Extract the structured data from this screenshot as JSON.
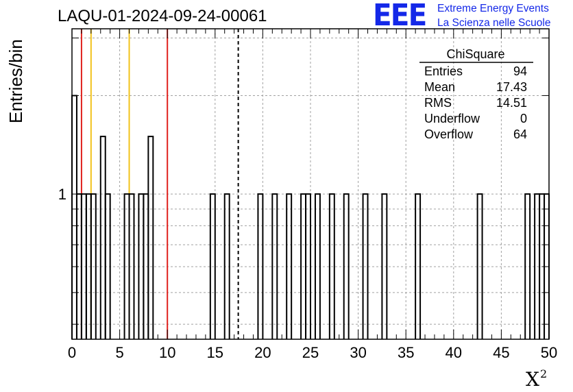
{
  "title": "LAQU-01-2024-09-24-00061",
  "logo": {
    "mark": "EEE",
    "line1": "Extreme Energy Events",
    "line2": "La Scienza nelle Scuole"
  },
  "colors": {
    "histogram": "#000000",
    "red_line": "#e0201c",
    "yellow_line": "#f2c21b",
    "grid": "#a0a0a0",
    "logo": "#1428e8"
  },
  "stats_box": {
    "name": "ChiSquare",
    "rows": [
      {
        "label": "Entries",
        "value": "94"
      },
      {
        "label": "Mean",
        "value": "17.43"
      },
      {
        "label": "RMS",
        "value": "14.51"
      },
      {
        "label": "Underflow",
        "value": "0"
      },
      {
        "label": "Overflow",
        "value": "64"
      }
    ]
  },
  "chart_data": {
    "type": "bar",
    "histogram_style": "step",
    "title": "LAQU-01-2024-09-24-00061",
    "xlabel": "X",
    "xlabel_superscript": "2",
    "ylabel": "Entries/bin",
    "xlim": [
      0,
      50
    ],
    "ylim": [
      0.36,
      3.2
    ],
    "y_scale": "log",
    "grid": true,
    "bin_width": 0.5,
    "x_ticks": [
      0,
      5,
      10,
      15,
      20,
      25,
      30,
      35,
      40,
      45,
      50
    ],
    "y_tick_labels": [
      {
        "value": 1,
        "label": "1"
      }
    ],
    "bins": [
      {
        "x0": 0.0,
        "x1": 0.5,
        "count": 2
      },
      {
        "x0": 0.5,
        "x1": 1.0,
        "count": 1
      },
      {
        "x0": 1.0,
        "x1": 1.5,
        "count": 1
      },
      {
        "x0": 1.5,
        "x1": 2.0,
        "count": 1
      },
      {
        "x0": 2.0,
        "x1": 2.5,
        "count": 1
      },
      {
        "x0": 3.0,
        "x1": 3.5,
        "count": 1.5
      },
      {
        "x0": 3.5,
        "x1": 4.0,
        "count": 1
      },
      {
        "x0": 5.5,
        "x1": 6.0,
        "count": 1
      },
      {
        "x0": 6.0,
        "x1": 6.5,
        "count": 1
      },
      {
        "x0": 7.0,
        "x1": 7.5,
        "count": 1
      },
      {
        "x0": 7.5,
        "x1": 8.0,
        "count": 1
      },
      {
        "x0": 8.0,
        "x1": 8.5,
        "count": 1.5
      },
      {
        "x0": 14.5,
        "x1": 15.0,
        "count": 1
      },
      {
        "x0": 16.0,
        "x1": 16.5,
        "count": 1
      },
      {
        "x0": 19.5,
        "x1": 20.0,
        "count": 1
      },
      {
        "x0": 21.0,
        "x1": 21.5,
        "count": 1
      },
      {
        "x0": 22.5,
        "x1": 23.0,
        "count": 1
      },
      {
        "x0": 24.0,
        "x1": 24.5,
        "count": 1
      },
      {
        "x0": 24.5,
        "x1": 25.0,
        "count": 1
      },
      {
        "x0": 25.5,
        "x1": 26.0,
        "count": 1
      },
      {
        "x0": 27.0,
        "x1": 27.5,
        "count": 1
      },
      {
        "x0": 28.5,
        "x1": 29.0,
        "count": 1
      },
      {
        "x0": 30.5,
        "x1": 31.0,
        "count": 1
      },
      {
        "x0": 32.5,
        "x1": 33.0,
        "count": 1
      },
      {
        "x0": 36.0,
        "x1": 36.5,
        "count": 1
      },
      {
        "x0": 42.5,
        "x1": 43.0,
        "count": 1
      },
      {
        "x0": 47.5,
        "x1": 48.0,
        "count": 1
      },
      {
        "x0": 48.5,
        "x1": 49.0,
        "count": 1
      },
      {
        "x0": 49.0,
        "x1": 49.5,
        "count": 1
      },
      {
        "x0": 49.5,
        "x1": 50.0,
        "count": 1
      }
    ],
    "vertical_lines": [
      {
        "x": 1.0,
        "color": "#e0201c",
        "style": "solid"
      },
      {
        "x": 2.0,
        "color": "#f2c21b",
        "style": "solid"
      },
      {
        "x": 6.0,
        "color": "#f2c21b",
        "style": "solid"
      },
      {
        "x": 10.0,
        "color": "#e0201c",
        "style": "solid"
      },
      {
        "x": 17.43,
        "color": "#000000",
        "style": "dashed"
      }
    ]
  }
}
